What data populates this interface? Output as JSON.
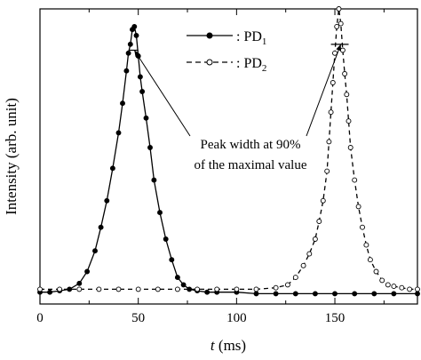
{
  "chart_data": {
    "type": "line",
    "title": "",
    "xlabel": {
      "italic": "t",
      "rest": " (ms)"
    },
    "ylabel": "Intensity (arb. unit)",
    "xlim": [
      0,
      192
    ],
    "ylim": [
      0,
      1
    ],
    "yticks_labeled": false,
    "xticks": [
      0,
      50,
      100,
      150
    ],
    "grid": false,
    "legend_position": "top-center",
    "series": [
      {
        "name": "PD1",
        "label_prefix": ": PD",
        "label_sub": "1",
        "line_style": "solid",
        "marker": "filled-circle",
        "color": "#000000",
        "x": [
          0,
          5,
          10,
          15,
          20,
          24,
          28,
          31,
          34,
          37,
          40,
          42,
          44,
          45,
          46,
          47,
          48,
          49,
          50,
          51,
          52,
          54,
          56,
          58,
          61,
          64,
          67,
          70,
          73,
          76,
          80,
          85,
          90,
          100,
          110,
          120,
          130,
          140,
          150,
          160,
          170,
          180,
          192
        ],
        "y": [
          0.04,
          0.04,
          0.045,
          0.05,
          0.07,
          0.11,
          0.18,
          0.26,
          0.35,
          0.46,
          0.58,
          0.68,
          0.79,
          0.85,
          0.88,
          0.93,
          0.94,
          0.91,
          0.84,
          0.77,
          0.72,
          0.63,
          0.53,
          0.42,
          0.31,
          0.22,
          0.15,
          0.09,
          0.065,
          0.05,
          0.045,
          0.04,
          0.04,
          0.04,
          0.035,
          0.035,
          0.035,
          0.035,
          0.035,
          0.035,
          0.035,
          0.035,
          0.035
        ]
      },
      {
        "name": "PD2",
        "label_prefix": ": PD",
        "label_sub": "2",
        "line_style": "dashed",
        "marker": "open-circle",
        "color": "#000000",
        "x": [
          0,
          10,
          20,
          30,
          40,
          50,
          60,
          70,
          80,
          90,
          100,
          110,
          120,
          126,
          130,
          134,
          137,
          140,
          142,
          144,
          146,
          147,
          148,
          149,
          150,
          151,
          152,
          153,
          154,
          155,
          156,
          157,
          158,
          160,
          162,
          164,
          166,
          168,
          171,
          174,
          177,
          180,
          184,
          188,
          192
        ],
        "y": [
          0.05,
          0.05,
          0.05,
          0.05,
          0.05,
          0.05,
          0.05,
          0.05,
          0.05,
          0.05,
          0.05,
          0.05,
          0.055,
          0.065,
          0.09,
          0.13,
          0.17,
          0.22,
          0.28,
          0.35,
          0.45,
          0.55,
          0.65,
          0.75,
          0.85,
          0.94,
          1.0,
          0.95,
          0.86,
          0.78,
          0.71,
          0.62,
          0.53,
          0.42,
          0.33,
          0.26,
          0.2,
          0.15,
          0.11,
          0.08,
          0.065,
          0.06,
          0.055,
          0.05,
          0.05
        ]
      }
    ],
    "annotation": {
      "line1": "Peak width at 90%",
      "line2": "of the maximal value",
      "arrow_targets": [
        {
          "x": 48,
          "y": 0.86
        },
        {
          "x": 153,
          "y": 0.88
        }
      ],
      "pd1_bracket": {
        "x1": 45,
        "x2": 50,
        "y": 0.86
      },
      "pd2_bracket": {
        "x1": 148,
        "x2": 157,
        "y": 0.88
      }
    }
  }
}
